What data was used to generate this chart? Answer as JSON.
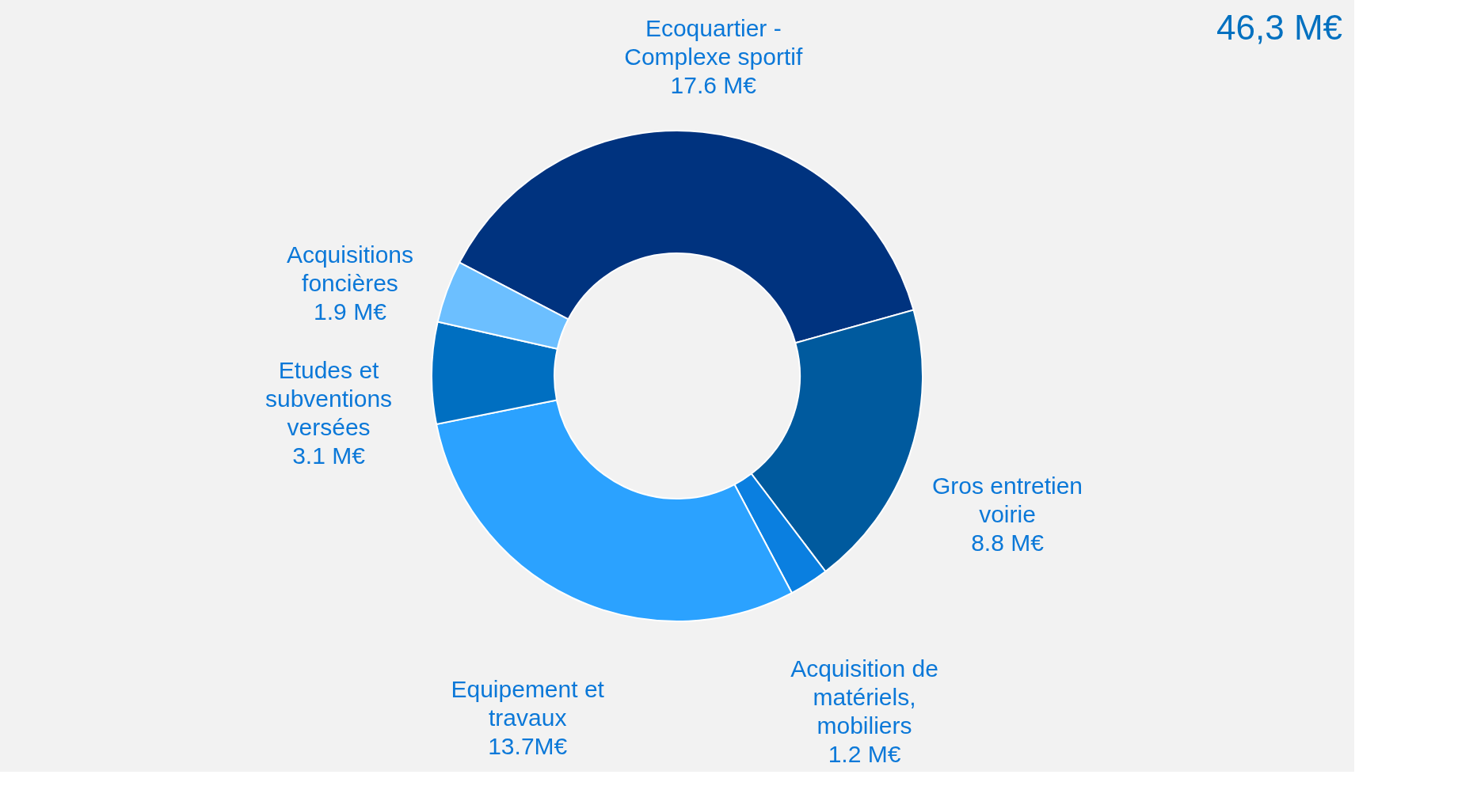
{
  "chart_data": {
    "type": "donut",
    "categories": [
      "Ecoquartier - Complexe sportif",
      "Gros entretien voirie",
      "Acquisition de matériels, mobiliers",
      "Equipement et travaux",
      "Etudes et subventions versées",
      "Acquisitions foncières"
    ],
    "values": [
      17.6,
      8.8,
      1.2,
      13.7,
      3.1,
      1.9
    ],
    "value_labels": [
      "17.6 M€",
      "8.8 M€",
      "1.2 M€",
      "13.7M€",
      "3.1 M€",
      "1.9 M€"
    ],
    "colors": [
      "#00337f",
      "#005a9e",
      "#0a7fe0",
      "#2ba2ff",
      "#006fc1",
      "#6cbfff"
    ],
    "annotations": [
      "46,3 M€"
    ],
    "legend": false
  }
}
